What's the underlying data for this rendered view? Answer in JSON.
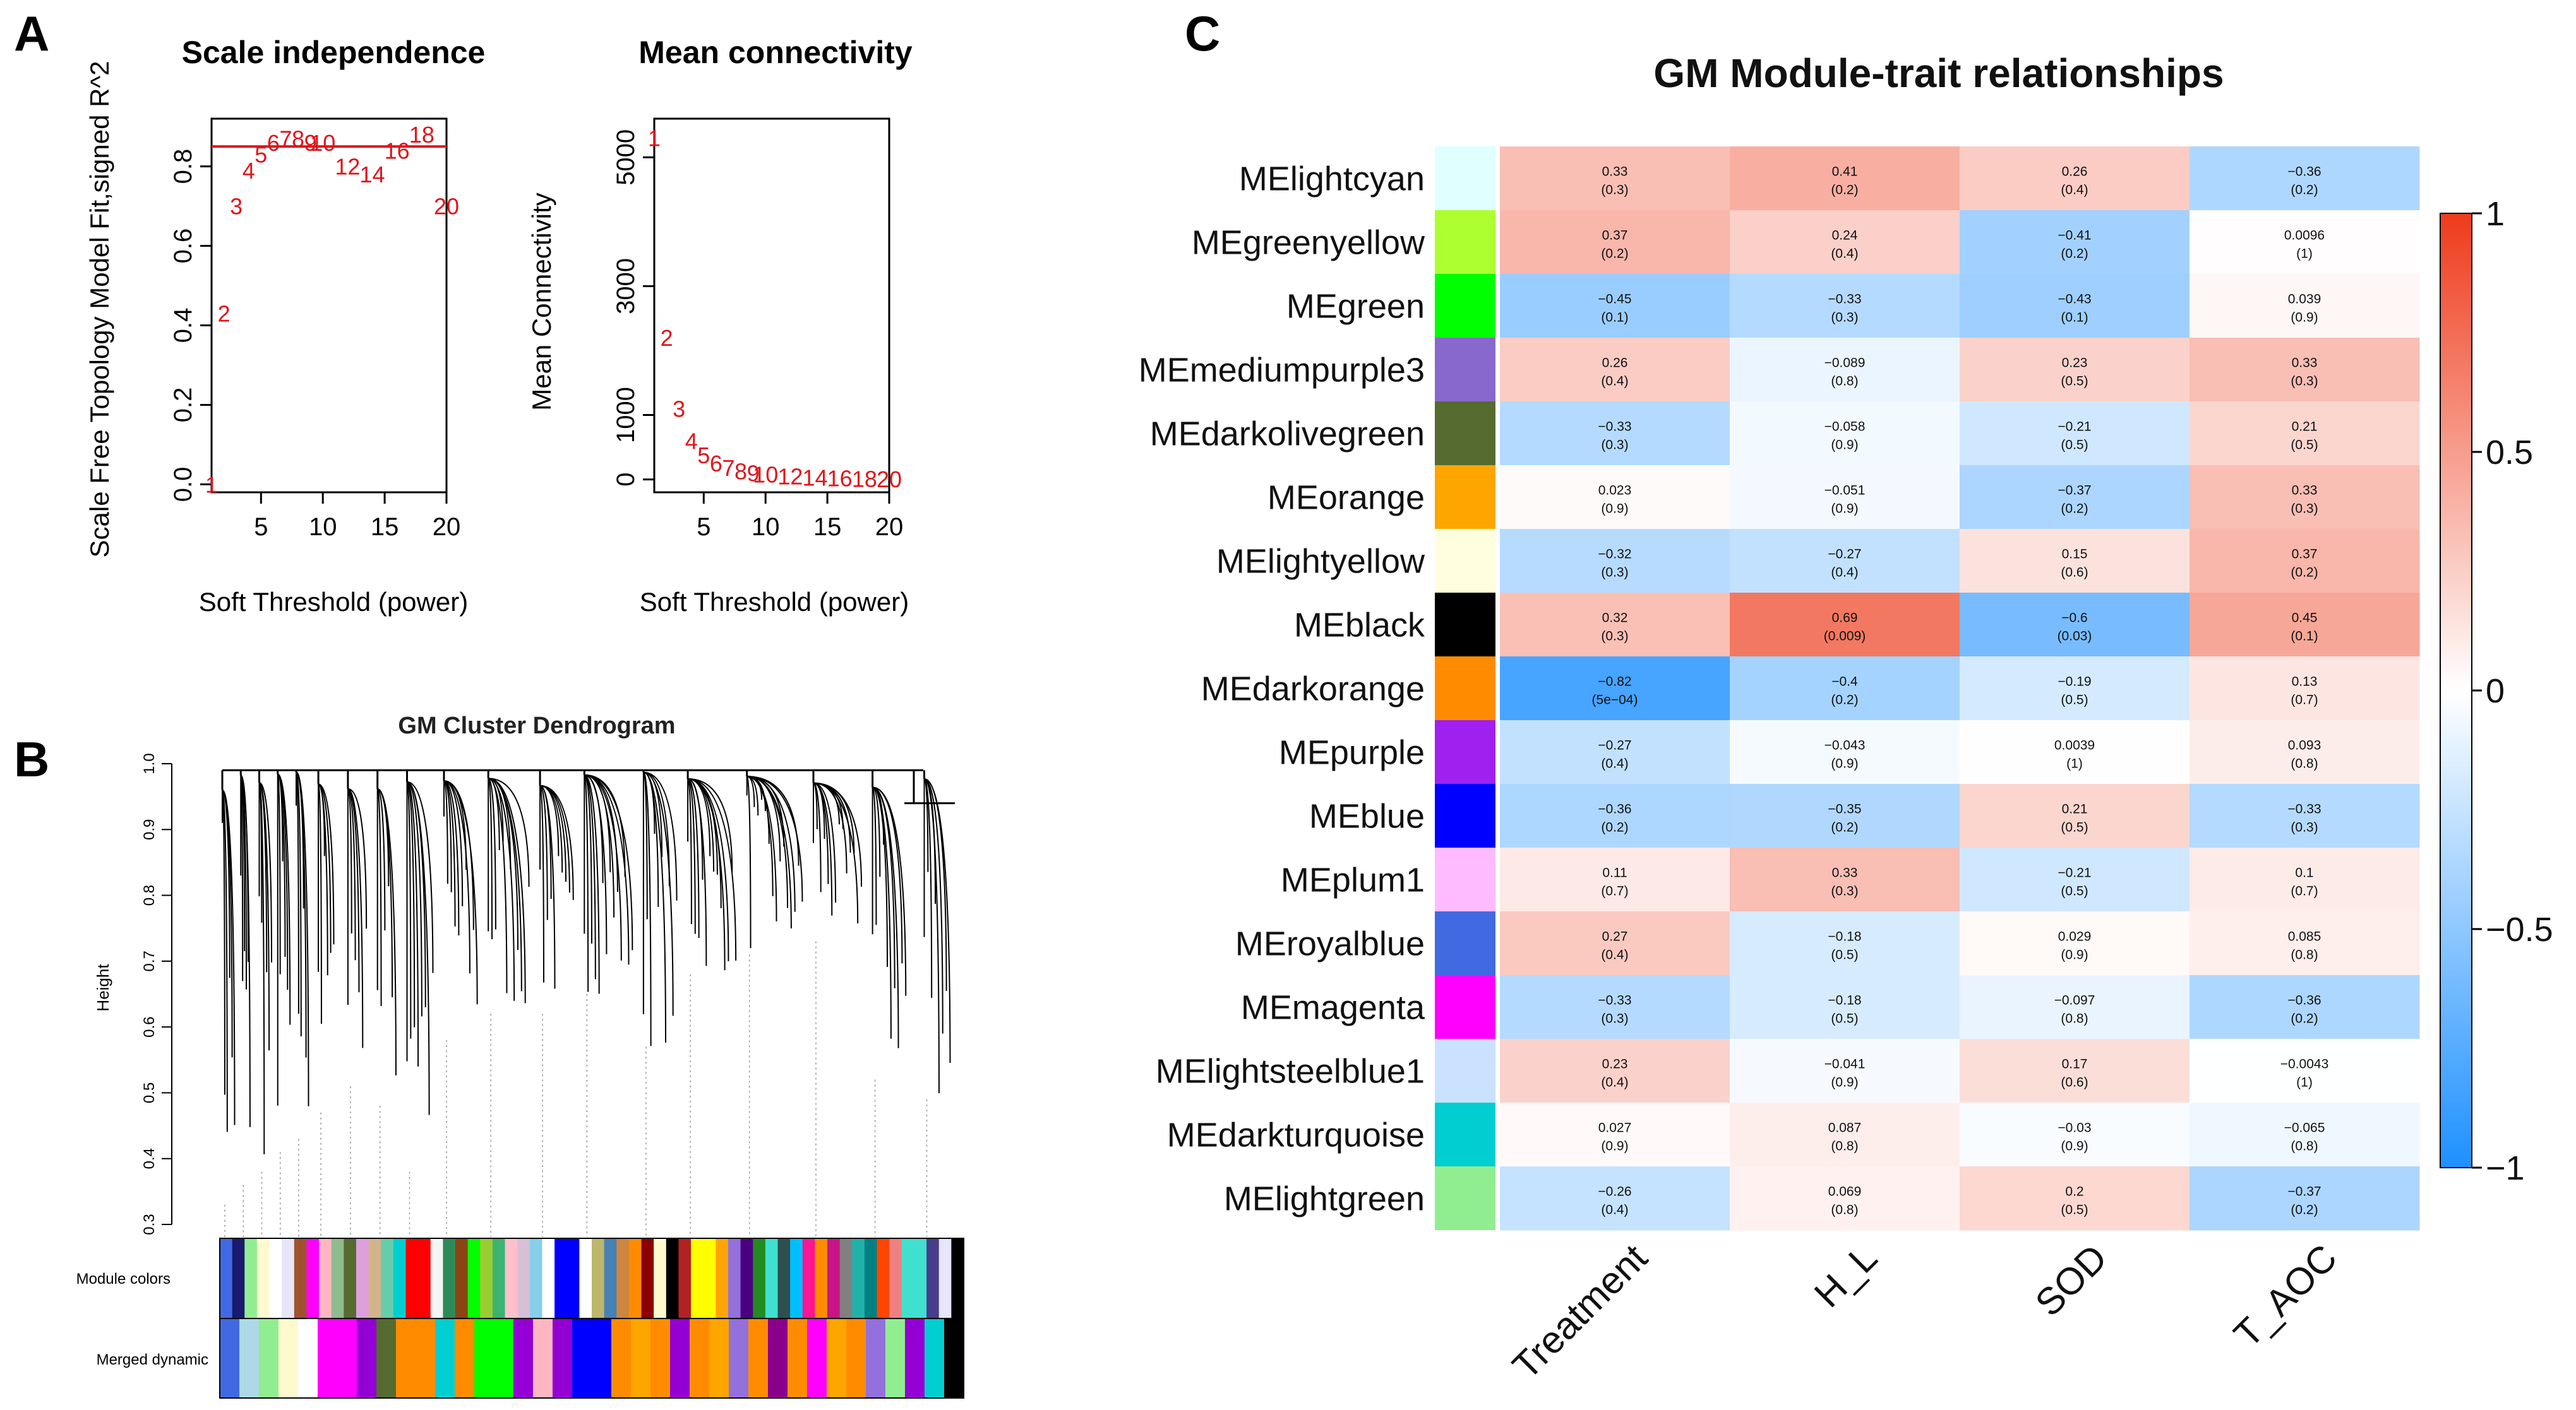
{
  "panels": {
    "a_label": "A",
    "b_label": "B",
    "c_label": "C"
  },
  "chart_data": [
    {
      "type": "scatter",
      "title": "Scale independence",
      "xlabel": "Soft Threshold (power)",
      "ylabel": "Scale Free Topology Model Fit,signed R^2",
      "xlim": [
        1,
        20
      ],
      "ylim": [
        -0.02,
        0.92
      ],
      "xticks": [
        5,
        10,
        15,
        20
      ],
      "yticks": [
        0.0,
        0.2,
        0.4,
        0.6,
        0.8
      ],
      "ytick_labels": [
        "0.0",
        "0.2",
        "0.4",
        "0.6",
        "0.8"
      ],
      "hline": 0.85,
      "powers": [
        1,
        2,
        3,
        4,
        5,
        6,
        7,
        8,
        9,
        10,
        12,
        14,
        16,
        18,
        20
      ],
      "values": [
        0.0,
        0.43,
        0.7,
        0.79,
        0.83,
        0.86,
        0.87,
        0.87,
        0.86,
        0.86,
        0.8,
        0.78,
        0.84,
        0.88,
        0.7
      ]
    },
    {
      "type": "scatter",
      "title": "Mean connectivity",
      "xlabel": "Soft Threshold (power)",
      "ylabel": "Mean Connectivity",
      "xlim": [
        1,
        20
      ],
      "ylim": [
        -200,
        5600
      ],
      "xticks": [
        5,
        10,
        15,
        20
      ],
      "yticks": [
        0,
        1000,
        3000,
        5000
      ],
      "ytick_labels": [
        "0",
        "1000",
        "3000",
        "5000"
      ],
      "powers": [
        1,
        2,
        3,
        4,
        5,
        6,
        7,
        8,
        9,
        10,
        12,
        14,
        16,
        18,
        20
      ],
      "values": [
        5300,
        2200,
        1100,
        600,
        380,
        250,
        180,
        130,
        100,
        80,
        50,
        30,
        20,
        12,
        6
      ]
    },
    {
      "type": "dendrogram",
      "title": "GM Cluster Dendrogram",
      "ylabel": "Height",
      "ylim": [
        0.3,
        1.0
      ],
      "yticks": [
        0.3,
        0.4,
        0.5,
        0.6,
        0.7,
        0.8,
        0.9,
        1.0
      ],
      "ytick_labels": [
        "0.3",
        "0.4",
        "0.5",
        "0.6",
        "0.7",
        "0.8",
        "0.9",
        "1.0"
      ],
      "track_labels": [
        "Module colors",
        "Merged dynamic"
      ],
      "module_colors": [
        "#4169e1",
        "#1a1a6e",
        "#90ee90",
        "#fffacd",
        "#ffffff",
        "#e6e6fa",
        "#a0522d",
        "#ff00ff",
        "#ffb6c1",
        "#8fbc8f",
        "#556b2f",
        "#dda0dd",
        "#d2b48c",
        "#66cdaa",
        "#00ced1",
        "#ff0000",
        "#ff0000",
        "#f5f5f5",
        "#2e8b57",
        "#8b4513",
        "#00ff00",
        "#9acd32",
        "#3cb371",
        "#ffc0cb",
        "#d8bfd8",
        "#87ceeb",
        "#ffffff",
        "#0000ff",
        "#0000ff",
        "#ffffff",
        "#bdb76b",
        "#4682b4",
        "#cd853f",
        "#ff8c00",
        "#8b0000",
        "#fffacd",
        "#000000",
        "#b22222",
        "#ffff00",
        "#ffff00",
        "#ffa500",
        "#9370db",
        "#4b0082",
        "#228b22",
        "#40e0d0",
        "#2f4f4f",
        "#00bfff",
        "#ff1493",
        "#ff8c00",
        "#c71585",
        "#808080",
        "#20b2aa",
        "#008080",
        "#ff4500",
        "#f08080",
        "#40e0d0",
        "#40e0d0",
        "#483d8b",
        "#e6e6fa",
        "#000000"
      ],
      "merged_colors": [
        "#4169e1",
        "#add8e6",
        "#90ee90",
        "#fffacd",
        "#ffffff",
        "#ff00ff",
        "#ff00ff",
        "#9400d3",
        "#556b2f",
        "#ff8c00",
        "#ff8c00",
        "#00ced1",
        "#ff8c00",
        "#00ff00",
        "#00ff00",
        "#9400d3",
        "#ffb6c1",
        "#9400d3",
        "#0000ff",
        "#0000ff",
        "#ff8c00",
        "#ffa500",
        "#ff8c00",
        "#9400d3",
        "#ff8c00",
        "#ffa500",
        "#9370db",
        "#ff8c00",
        "#8b008b",
        "#ff8c00",
        "#ff00ff",
        "#ffa500",
        "#ff8c00",
        "#9370db",
        "#90ee90",
        "#9400d3",
        "#00ced1",
        "#000000"
      ]
    },
    {
      "type": "heatmap",
      "title": "GM Module-trait relationships",
      "columns": [
        "Treatment",
        "H_L",
        "SOD",
        "T_AOC"
      ],
      "rows": [
        "MElightcyan",
        "MEgreenyellow",
        "MEgreen",
        "MEmediumpurple3",
        "MEdarkolivegreen",
        "MEorange",
        "MElightyellow",
        "MEblack",
        "MEdarkorange",
        "MEpurple",
        "MEblue",
        "MEplum1",
        "MEroyalblue",
        "MEmagenta",
        "MElightsteelblue1",
        "MEdarkturquoise",
        "MElightgreen"
      ],
      "row_colors": [
        "#e0ffff",
        "#adff2f",
        "#00ff00",
        "#8968cd",
        "#556b2f",
        "#ffa500",
        "#ffffe0",
        "#000000",
        "#ff8c00",
        "#a020f0",
        "#0000ff",
        "#ffbbff",
        "#4169e1",
        "#ff00ff",
        "#cae1ff",
        "#00ced1",
        "#90ee90"
      ],
      "values": [
        [
          0.33,
          0.41,
          0.26,
          -0.36
        ],
        [
          0.37,
          0.24,
          -0.41,
          0.0096
        ],
        [
          -0.45,
          -0.33,
          -0.43,
          0.039
        ],
        [
          0.26,
          -0.089,
          0.23,
          0.33
        ],
        [
          -0.33,
          -0.058,
          -0.21,
          0.21
        ],
        [
          0.023,
          -0.051,
          -0.37,
          0.33
        ],
        [
          -0.32,
          -0.27,
          0.15,
          0.37
        ],
        [
          0.32,
          0.69,
          -0.6,
          0.45
        ],
        [
          -0.82,
          -0.4,
          -0.19,
          0.13
        ],
        [
          -0.27,
          -0.043,
          0.0039,
          0.093
        ],
        [
          -0.36,
          -0.35,
          0.21,
          -0.33
        ],
        [
          0.11,
          0.33,
          -0.21,
          0.1
        ],
        [
          0.27,
          -0.18,
          0.029,
          0.085
        ],
        [
          -0.33,
          -0.18,
          -0.097,
          -0.36
        ],
        [
          0.23,
          -0.041,
          0.17,
          -0.0043
        ],
        [
          0.027,
          0.087,
          -0.03,
          -0.065
        ],
        [
          -0.26,
          0.069,
          0.2,
          -0.37
        ]
      ],
      "labels": [
        [
          "0.33",
          "0.41",
          "0.26",
          "−0.36"
        ],
        [
          "0.37",
          "0.24",
          "−0.41",
          "0.0096"
        ],
        [
          "−0.45",
          "−0.33",
          "−0.43",
          "0.039"
        ],
        [
          "0.26",
          "−0.089",
          "0.23",
          "0.33"
        ],
        [
          "−0.33",
          "−0.058",
          "−0.21",
          "0.21"
        ],
        [
          "0.023",
          "−0.051",
          "−0.37",
          "0.33"
        ],
        [
          "−0.32",
          "−0.27",
          "0.15",
          "0.37"
        ],
        [
          "0.32",
          "0.69",
          "−0.6",
          "0.45"
        ],
        [
          "−0.82",
          "−0.4",
          "−0.19",
          "0.13"
        ],
        [
          "−0.27",
          "−0.043",
          "0.0039",
          "0.093"
        ],
        [
          "−0.36",
          "−0.35",
          "0.21",
          "−0.33"
        ],
        [
          "0.11",
          "0.33",
          "−0.21",
          "0.1"
        ],
        [
          "0.27",
          "−0.18",
          "0.029",
          "0.085"
        ],
        [
          "−0.33",
          "−0.18",
          "−0.097",
          "−0.36"
        ],
        [
          "0.23",
          "−0.041",
          "0.17",
          "−0.0043"
        ],
        [
          "0.027",
          "0.087",
          "−0.03",
          "−0.065"
        ],
        [
          "−0.26",
          "0.069",
          "0.2",
          "−0.37"
        ]
      ],
      "pvalues": [
        [
          "(0.3)",
          "(0.2)",
          "(0.4)",
          "(0.2)"
        ],
        [
          "(0.2)",
          "(0.4)",
          "(0.2)",
          "(1)"
        ],
        [
          "(0.1)",
          "(0.3)",
          "(0.1)",
          "(0.9)"
        ],
        [
          "(0.4)",
          "(0.8)",
          "(0.5)",
          "(0.3)"
        ],
        [
          "(0.3)",
          "(0.9)",
          "(0.5)",
          "(0.5)"
        ],
        [
          "(0.9)",
          "(0.9)",
          "(0.2)",
          "(0.3)"
        ],
        [
          "(0.3)",
          "(0.4)",
          "(0.6)",
          "(0.2)"
        ],
        [
          "(0.3)",
          "(0.009)",
          "(0.03)",
          "(0.1)"
        ],
        [
          "(5e−04)",
          "(0.2)",
          "(0.5)",
          "(0.7)"
        ],
        [
          "(0.4)",
          "(0.9)",
          "(1)",
          "(0.8)"
        ],
        [
          "(0.2)",
          "(0.2)",
          "(0.5)",
          "(0.3)"
        ],
        [
          "(0.7)",
          "(0.3)",
          "(0.5)",
          "(0.7)"
        ],
        [
          "(0.4)",
          "(0.5)",
          "(0.9)",
          "(0.8)"
        ],
        [
          "(0.3)",
          "(0.5)",
          "(0.8)",
          "(0.2)"
        ],
        [
          "(0.4)",
          "(0.9)",
          "(0.6)",
          "(1)"
        ],
        [
          "(0.9)",
          "(0.8)",
          "(0.9)",
          "(0.8)"
        ],
        [
          "(0.4)",
          "(0.8)",
          "(0.5)",
          "(0.2)"
        ]
      ],
      "colorbar": {
        "range": [
          -1,
          1
        ],
        "ticks": [
          1,
          0.5,
          0,
          -0.5,
          -1
        ],
        "tick_labels": [
          "1",
          "0.5",
          "0",
          "−0.5",
          "−1"
        ],
        "colors": {
          "neg": "#1e90ff",
          "mid": "#ffffff",
          "pos": "#ee3b1b"
        }
      }
    }
  ]
}
